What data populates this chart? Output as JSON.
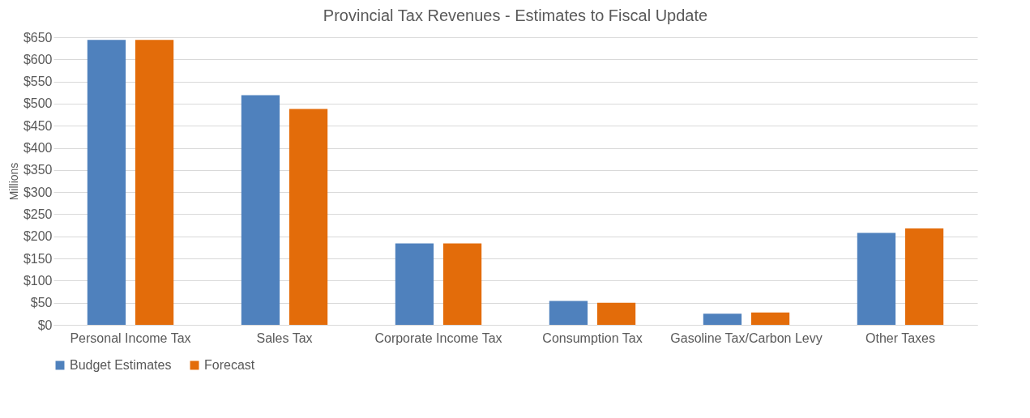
{
  "chart_data": {
    "type": "bar",
    "title": "Provincial Tax Revenues - Estimates to Fiscal Update",
    "ylabel": "Millions",
    "categories": [
      "Personal Income Tax",
      "Sales Tax",
      "Corporate Income Tax",
      "Consumption Tax",
      "Gasoline Tax/Carbon Levy",
      "Other Taxes"
    ],
    "series": [
      {
        "name": "Budget Estimates",
        "color": "#4f81bd",
        "values": [
          644,
          519,
          184,
          54,
          25,
          208
        ]
      },
      {
        "name": "Forecast",
        "color": "#e36c0a",
        "values": [
          644,
          488,
          184,
          50,
          28,
          218
        ]
      }
    ],
    "ylim": [
      0,
      650
    ],
    "yticks": [
      {
        "value": 0,
        "label": "$0"
      },
      {
        "value": 50,
        "label": "$50"
      },
      {
        "value": 100,
        "label": "$100"
      },
      {
        "value": 150,
        "label": "$150"
      },
      {
        "value": 200,
        "label": "$200"
      },
      {
        "value": 250,
        "label": "$250"
      },
      {
        "value": 300,
        "label": "$300"
      },
      {
        "value": 350,
        "label": "$350"
      },
      {
        "value": 400,
        "label": "$400"
      },
      {
        "value": 450,
        "label": "$450"
      },
      {
        "value": 500,
        "label": "$500"
      },
      {
        "value": 550,
        "label": "$550"
      },
      {
        "value": 600,
        "label": "$600"
      },
      {
        "value": 650,
        "label": "$650"
      }
    ],
    "grid": "y",
    "legend": "bottom"
  }
}
